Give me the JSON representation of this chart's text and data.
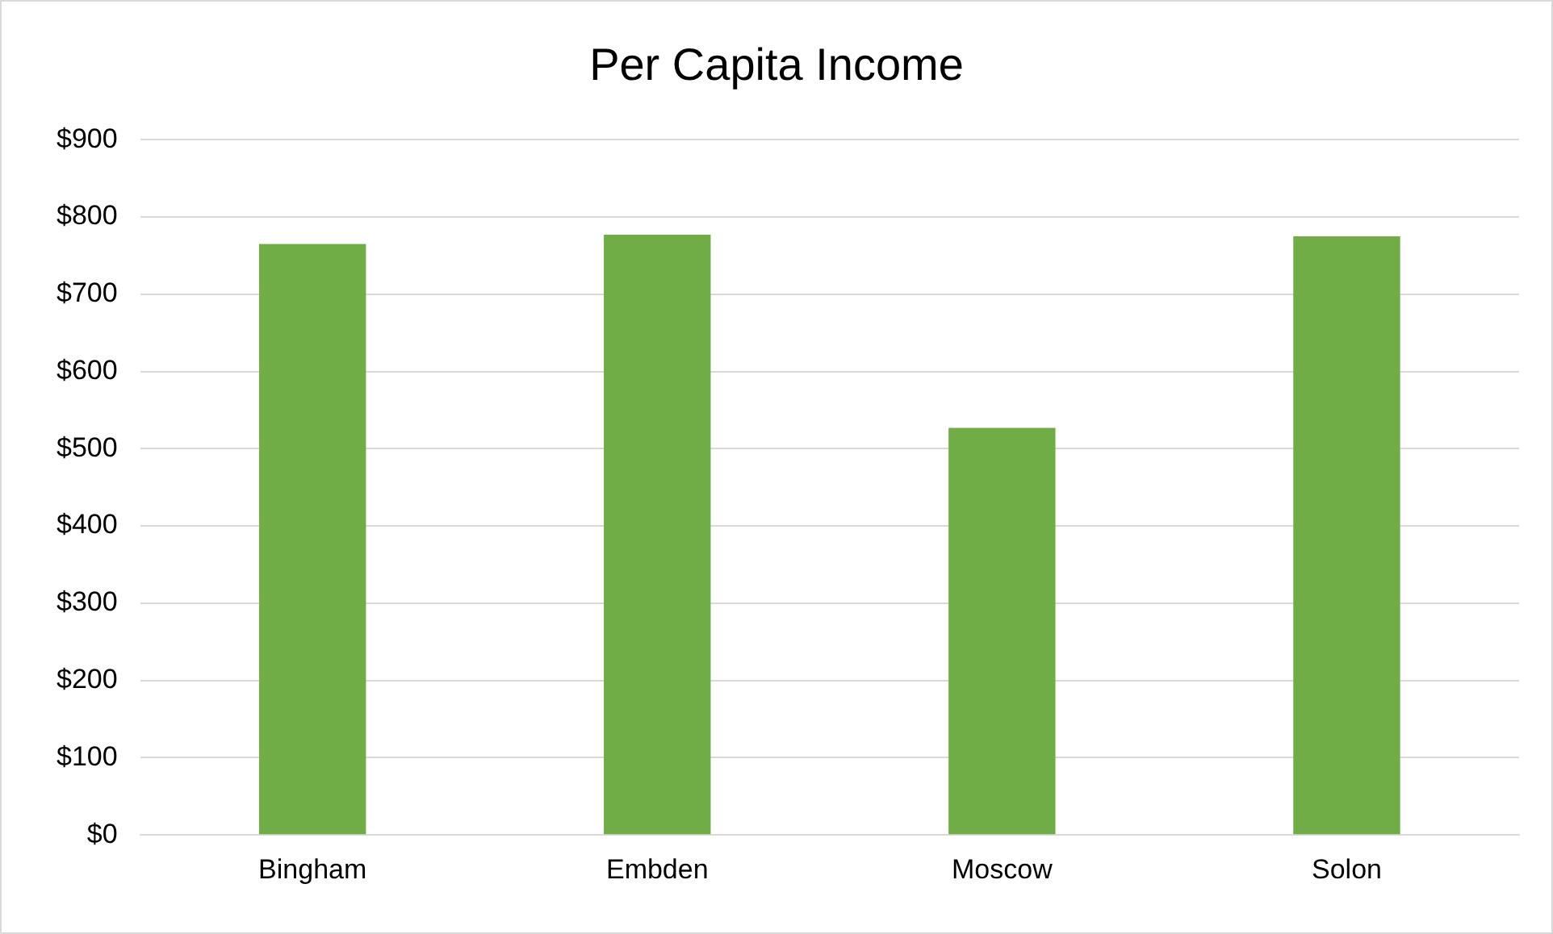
{
  "chart_data": {
    "type": "bar",
    "title": "Per Capita Income",
    "categories": [
      "Bingham",
      "Embden",
      "Moscow",
      "Solon"
    ],
    "values": [
      765,
      777,
      527,
      775
    ],
    "color": "#70ad47",
    "ylim": [
      0,
      900
    ],
    "yticks": [
      {
        "value": 0,
        "label": "$0"
      },
      {
        "value": 100,
        "label": "$100"
      },
      {
        "value": 200,
        "label": "$200"
      },
      {
        "value": 300,
        "label": "$300"
      },
      {
        "value": 400,
        "label": "$400"
      },
      {
        "value": 500,
        "label": "$500"
      },
      {
        "value": 600,
        "label": "$600"
      },
      {
        "value": 700,
        "label": "$700"
      },
      {
        "value": 800,
        "label": "$800"
      },
      {
        "value": 900,
        "label": "$900"
      }
    ],
    "grid": "y"
  }
}
